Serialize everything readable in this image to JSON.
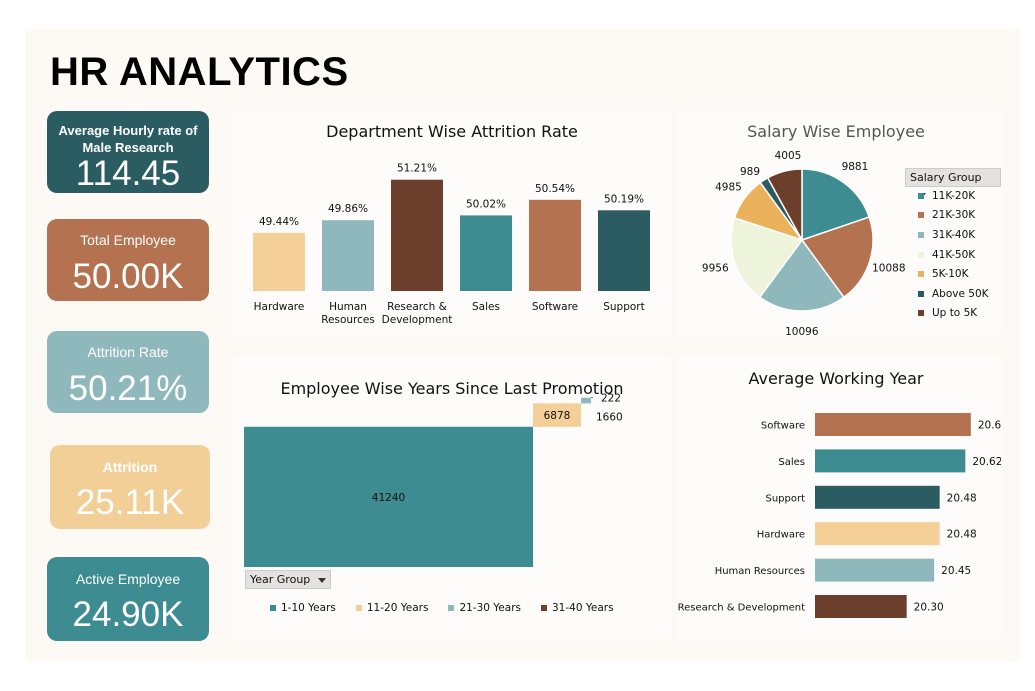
{
  "dashboard": {
    "title": "HR ANALYTICS"
  },
  "kpis": [
    {
      "id": "avg-hourly",
      "label": "Average Hourly rate of Male Research",
      "value": "114.45",
      "color": "#2a5c62"
    },
    {
      "id": "total-employee",
      "label": "Total Employee",
      "value": "50.00K",
      "color": "#b57250"
    },
    {
      "id": "attrition-rate",
      "label": "Attrition Rate",
      "value": "50.21%",
      "color": "#8fb8bd"
    },
    {
      "id": "attrition",
      "label": "Attrition",
      "value": "25.11K",
      "color": "#f3cf98"
    },
    {
      "id": "active-employee",
      "label": "Active Employee",
      "value": "24.90K",
      "color": "#3c8c91"
    }
  ],
  "chart_data": [
    {
      "id": "dept-attrition",
      "type": "bar",
      "title": "Department Wise Attrition Rate",
      "categories": [
        "Hardware",
        "Human\nResources",
        "Research &\nDevelopment",
        "Sales",
        "Software",
        "Support"
      ],
      "values": [
        49.44,
        49.86,
        51.21,
        50.02,
        50.54,
        50.19
      ],
      "data_labels": [
        "49.44%",
        "49.86%",
        "51.21%",
        "50.02%",
        "50.54%",
        "50.19%"
      ],
      "colors": [
        "#f5cf98",
        "#8fb8bd",
        "#6b3f2c",
        "#3c8c91",
        "#b57250",
        "#2a5c62"
      ],
      "ylim": [
        47.5,
        51.5
      ]
    },
    {
      "id": "salary-pie",
      "type": "pie",
      "title": "Salary Wise Employee",
      "filter_label": "Salary Group",
      "legend_position": "right",
      "labels": [
        "11K-20K",
        "21K-30K",
        "31K-40K",
        "41K-50K",
        "5K-10K",
        "Above 50K",
        "Up to 5K"
      ],
      "values": [
        9881,
        10088,
        10096,
        9956,
        4985,
        989,
        4005
      ],
      "colors": [
        "#3c8c91",
        "#b57250",
        "#8fb8bd",
        "#eef3dc",
        "#ebb25b",
        "#2a5c62",
        "#6b3f2c"
      ]
    },
    {
      "id": "promotion-waterfall",
      "type": "bar",
      "title": "Employee Wise Years Since Last Promotion",
      "filter_label": "Year Group",
      "legend_position": "bottom",
      "categories": [
        "1-10 Years",
        "11-20 Years",
        "21-30 Years",
        "31-40 Years"
      ],
      "values": [
        41240,
        6878,
        1660,
        222
      ],
      "colors": [
        "#3c8c91",
        "#f5cf98",
        "#8fb8bd",
        "#6b3f2c"
      ]
    },
    {
      "id": "avg-working-year",
      "type": "bar",
      "orientation": "horizontal",
      "title": "Average Working Year",
      "categories": [
        "Software",
        "Sales",
        "Support",
        "Hardware",
        "Human Resources",
        "Research & Development"
      ],
      "values": [
        20.65,
        20.62,
        20.48,
        20.48,
        20.45,
        20.3
      ],
      "colors": [
        "#b57250",
        "#3c8c91",
        "#2a5c62",
        "#f5cf98",
        "#8fb8bd",
        "#6b3f2c"
      ],
      "xlim": [
        19.8,
        20.7
      ]
    }
  ]
}
